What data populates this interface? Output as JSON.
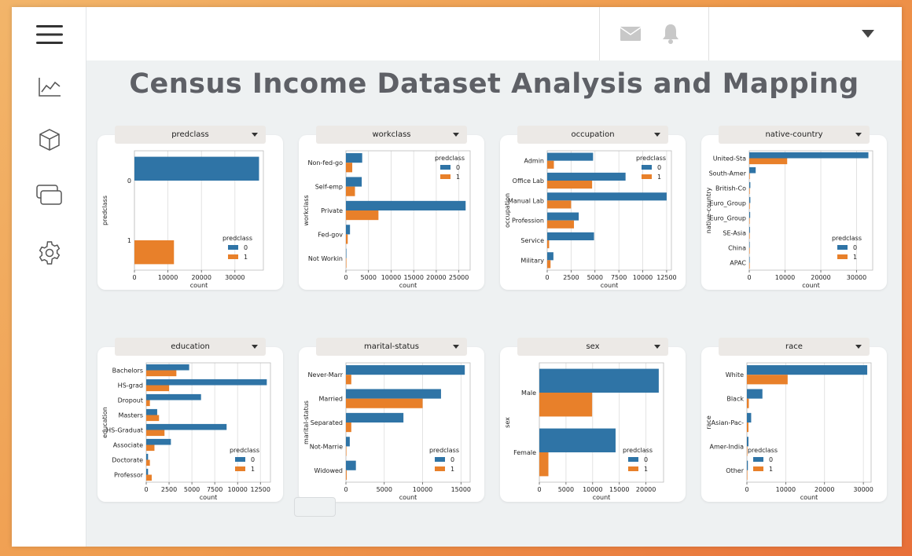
{
  "page": {
    "title": "Census Income Dataset Analysis and Mapping"
  },
  "sidebar": {
    "icons": [
      "menu-icon",
      "line-chart-icon",
      "cube-icon",
      "windows-icon",
      "gear-icon"
    ]
  },
  "topbar": {
    "icons": [
      "mail-icon",
      "bell-icon",
      "chevron-down-icon"
    ]
  },
  "colors": {
    "class0": "#2f74a6",
    "class1": "#e8802a"
  },
  "panels": [
    {
      "name": "predclass",
      "label": "predclass",
      "ylabel": "predclass",
      "xlabel": "count",
      "categories": [
        "0",
        "1"
      ],
      "series": [
        {
          "name": "0",
          "values": [
            37200,
            0
          ]
        },
        {
          "name": "1",
          "values": [
            0,
            11800
          ]
        }
      ],
      "xticks": [
        0,
        10000,
        20000,
        30000
      ],
      "xmax": 38500,
      "legend": {
        "title": "predclass",
        "entries": [
          "0",
          "1"
        ],
        "position": "bottom-right"
      }
    },
    {
      "name": "workclass",
      "label": "workclass",
      "ylabel": "workclass",
      "xlabel": "count",
      "categories": [
        "Non-fed-go",
        "Self-emp",
        "Private",
        "Fed-gov",
        "Not Workin"
      ],
      "series": [
        {
          "name": "0",
          "values": [
            3600,
            3500,
            26500,
            900,
            10
          ]
        },
        {
          "name": "1",
          "values": [
            1400,
            2000,
            7200,
            400,
            0
          ]
        }
      ],
      "xticks": [
        0,
        5000,
        10000,
        15000,
        20000,
        25000
      ],
      "xmax": 27500,
      "legend": {
        "title": "predclass",
        "entries": [
          "0",
          "1"
        ],
        "position": "top-right"
      }
    },
    {
      "name": "occupation",
      "label": "occupation",
      "ylabel": "occupation",
      "xlabel": "count",
      "categories": [
        "Admin",
        "Office Lab",
        "Manual Lab",
        "Profession",
        "Service",
        "Military"
      ],
      "series": [
        {
          "name": "0",
          "values": [
            4800,
            8200,
            12500,
            3300,
            4900,
            650
          ]
        },
        {
          "name": "1",
          "values": [
            700,
            4700,
            2500,
            2800,
            200,
            350
          ]
        }
      ],
      "xticks": [
        0,
        2500,
        5000,
        7500,
        10000,
        12500
      ],
      "xmax": 13000,
      "legend": {
        "title": "predclass",
        "entries": [
          "0",
          "1"
        ],
        "position": "top-right"
      }
    },
    {
      "name": "native-country",
      "label": "native-country",
      "ylabel": "native-country",
      "xlabel": "count",
      "categories": [
        "United-Sta",
        "South-Amer",
        "British-Co",
        "Euro_Group",
        "Euro_Group",
        "SE-Asia",
        "China",
        "APAC"
      ],
      "series": [
        {
          "name": "0",
          "values": [
            33300,
            1800,
            300,
            300,
            250,
            200,
            100,
            50
          ]
        },
        {
          "name": "1",
          "values": [
            10600,
            150,
            150,
            150,
            100,
            100,
            50,
            30
          ]
        }
      ],
      "xticks": [
        0,
        10000,
        20000,
        30000
      ],
      "xmax": 34500,
      "legend": {
        "title": "predclass",
        "entries": [
          "0",
          "1"
        ],
        "position": "bottom-right"
      }
    },
    {
      "name": "education",
      "label": "education",
      "ylabel": "education",
      "xlabel": "count",
      "categories": [
        "Bachelors",
        "HS-grad",
        "Dropout",
        "Masters",
        "HS-Graduat",
        "Associate",
        "Doctorate",
        "Professor"
      ],
      "series": [
        {
          "name": "0",
          "values": [
            4700,
            13200,
            6000,
            1200,
            8800,
            2700,
            200,
            200
          ]
        },
        {
          "name": "1",
          "values": [
            3300,
            2500,
            400,
            1400,
            2000,
            900,
            400,
            600
          ]
        }
      ],
      "xticks": [
        0,
        2500,
        5000,
        7500,
        10000,
        12500
      ],
      "xmax": 13600,
      "legend": {
        "title": "predclass",
        "entries": [
          "0",
          "1"
        ],
        "position": "bottom-right"
      }
    },
    {
      "name": "marital-status",
      "label": "marital-status",
      "ylabel": "marital-status",
      "xlabel": "count",
      "categories": [
        "Never-Marr",
        "Married",
        "Separated",
        "Not-Marrie",
        "Widowed"
      ],
      "series": [
        {
          "name": "0",
          "values": [
            15500,
            12400,
            7500,
            500,
            1300
          ]
        },
        {
          "name": "1",
          "values": [
            700,
            10000,
            700,
            50,
            100
          ]
        }
      ],
      "xticks": [
        0,
        5000,
        10000,
        15000
      ],
      "xmax": 16200,
      "legend": {
        "title": "predclass",
        "entries": [
          "0",
          "1"
        ],
        "position": "bottom-right"
      }
    },
    {
      "name": "sex",
      "label": "sex",
      "ylabel": "sex",
      "xlabel": "count",
      "categories": [
        "Male",
        "Female"
      ],
      "series": [
        {
          "name": "0",
          "values": [
            22400,
            14300
          ]
        },
        {
          "name": "1",
          "values": [
            9900,
            1700
          ]
        }
      ],
      "xticks": [
        0,
        5000,
        10000,
        15000,
        20000
      ],
      "xmax": 23300,
      "legend": {
        "title": "predclass",
        "entries": [
          "0",
          "1"
        ],
        "position": "bottom-right"
      }
    },
    {
      "name": "race",
      "label": "race",
      "ylabel": "race",
      "xlabel": "count",
      "categories": [
        "White",
        "Black",
        "Asian-Pac-",
        "Amer-India",
        "Other"
      ],
      "series": [
        {
          "name": "0",
          "values": [
            31000,
            4000,
            1100,
            400,
            250
          ]
        },
        {
          "name": "1",
          "values": [
            10500,
            500,
            400,
            50,
            30
          ]
        }
      ],
      "xticks": [
        0,
        10000,
        20000,
        30000
      ],
      "xmax": 32000,
      "legend": {
        "title": "predclass",
        "entries": [
          "0",
          "1"
        ],
        "position": "bottom-left"
      }
    }
  ]
}
